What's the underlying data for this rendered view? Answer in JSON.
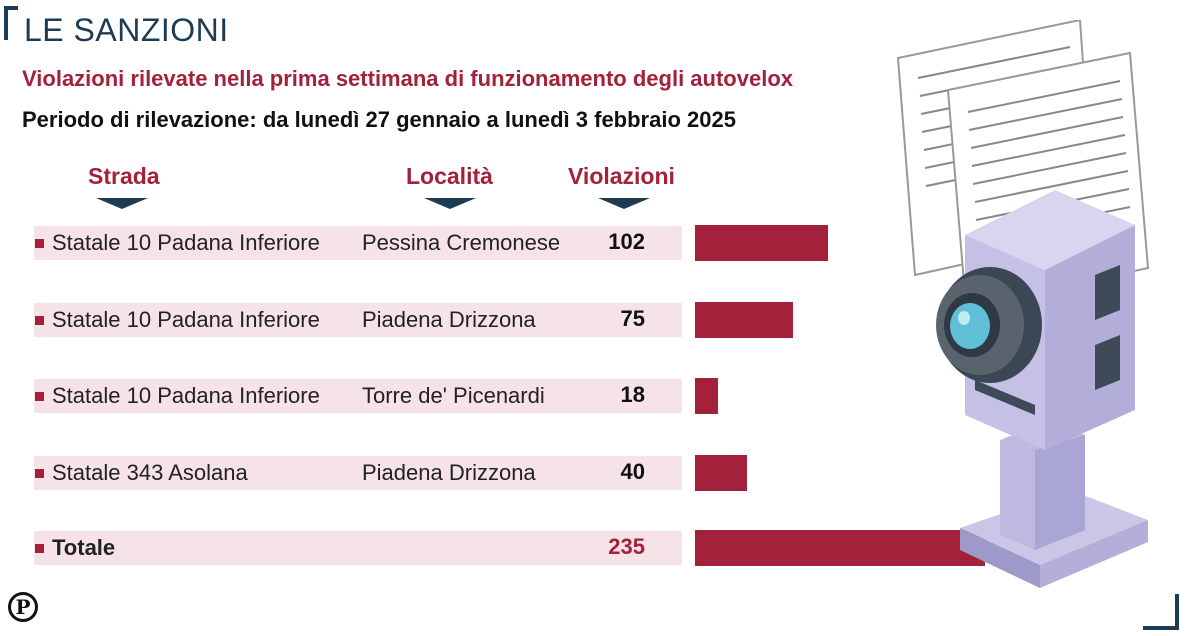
{
  "header": {
    "title": "LE SANZIONI",
    "subtitle": "Violazioni rilevate nella prima settimana di funzionamento degli autovelox",
    "period": "Periodo di rilevazione: da lunedì 27 gennaio a lunedì 3 febbraio 2025"
  },
  "columns": {
    "strada": "Strada",
    "localita": "Località",
    "violazioni": "Violazioni"
  },
  "colors": {
    "accent": "#a3213a",
    "navy": "#1d3b52",
    "band": "#f6e3e7"
  },
  "logo": {
    "letter": "P"
  },
  "chart_data": {
    "type": "bar",
    "orientation": "horizontal",
    "rows": [
      {
        "strada": "Statale 10 Padana Inferiore",
        "localita": "Pessina Cremonese",
        "value": 102
      },
      {
        "strada": "Statale 10 Padana Inferiore",
        "localita": "Piadena Drizzona",
        "value": 75
      },
      {
        "strada": "Statale 10 Padana Inferiore",
        "localita": "Torre de' Picenardi",
        "value": 18
      },
      {
        "strada": "Statale 343 Asolana",
        "localita": "Piadena Drizzona",
        "value": 40
      }
    ],
    "total": {
      "label": "Totale",
      "value": 235
    }
  }
}
